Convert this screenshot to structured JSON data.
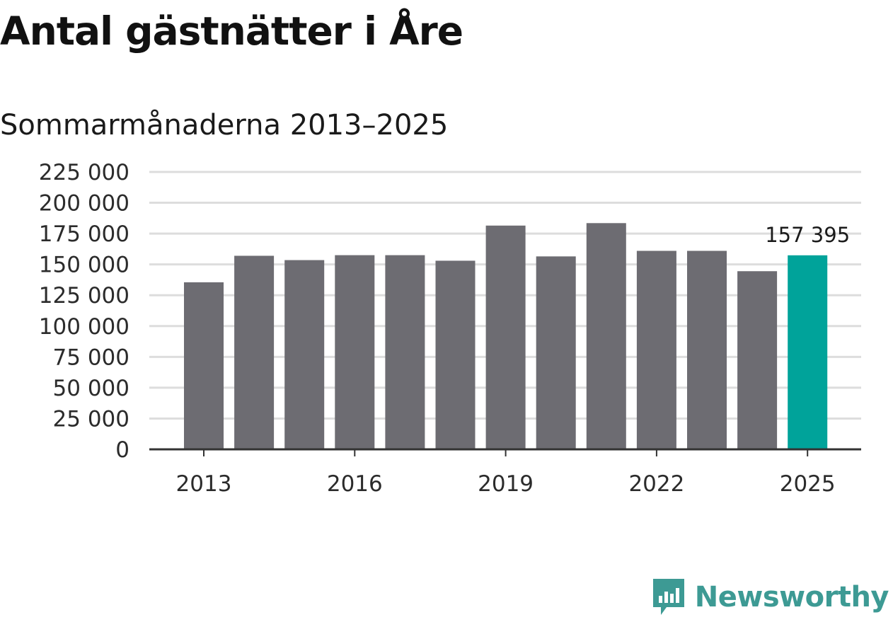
{
  "title": "Antal gästnätter i Åre",
  "subtitle": "Sommarmånaderna 2013–2025",
  "brand": {
    "name": "Newsworthy",
    "logo_icon": "newsworthy-chart-bubble-icon",
    "color": "#3d9a94"
  },
  "colors": {
    "bar": "#6d6c72",
    "highlight": "#00a39a",
    "grid": "#dddddd",
    "axis": "#333333"
  },
  "chart_data": {
    "type": "bar",
    "title": "Antal gästnätter i Åre",
    "subtitle": "Sommarmånaderna 2013–2025",
    "xlabel": "",
    "ylabel": "",
    "categories": [
      2013,
      2014,
      2015,
      2016,
      2017,
      2018,
      2019,
      2020,
      2021,
      2022,
      2023,
      2024,
      2025
    ],
    "values": [
      135500,
      157000,
      153500,
      157500,
      157500,
      153000,
      181500,
      156500,
      183500,
      161000,
      161000,
      144500,
      157395
    ],
    "highlight_category": 2025,
    "data_labels": [
      {
        "category": 2025,
        "text": "157 395"
      }
    ],
    "x_tick_labels": [
      "2013",
      "2016",
      "2019",
      "2022",
      "2025"
    ],
    "y_tick_labels": [
      "0",
      "25 000",
      "50 000",
      "75 000",
      "100 000",
      "125 000",
      "150 000",
      "175 000",
      "200 000",
      "225 000"
    ],
    "ylim": [
      0,
      225000
    ],
    "grid": "horizontal"
  }
}
